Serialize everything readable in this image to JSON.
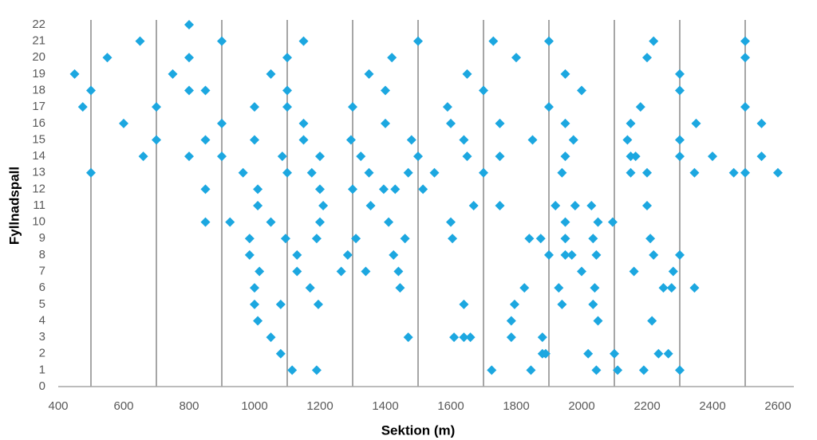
{
  "chart_data": {
    "type": "scatter",
    "x_label": "Sektion (m)",
    "y_label": "Fyllnadspall",
    "color": "#1ca7e0",
    "xlim": [
      400,
      2600
    ],
    "ylim": [
      0,
      22
    ],
    "xticks": [
      400,
      600,
      800,
      1000,
      1200,
      1400,
      1600,
      1800,
      2000,
      2200,
      2400,
      2600
    ],
    "yticks": [
      0,
      1,
      2,
      3,
      4,
      5,
      6,
      7,
      8,
      9,
      10,
      11,
      12,
      13,
      14,
      15,
      16,
      17,
      18,
      19,
      20,
      21,
      22
    ],
    "xgrid": [
      500,
      700,
      900,
      1100,
      1300,
      1500,
      1700,
      1900,
      2100,
      2300,
      2500
    ],
    "x": [
      800,
      650,
      900,
      1150,
      1500,
      1730,
      1900,
      2220,
      2500,
      550,
      800,
      1100,
      1420,
      1800,
      2200,
      2500,
      450,
      750,
      1050,
      1350,
      1650,
      1950,
      2300,
      500,
      800,
      850,
      1100,
      1400,
      1700,
      2000,
      2300,
      475,
      700,
      1000,
      1100,
      1300,
      1590,
      1900,
      2180,
      2500,
      600,
      900,
      1150,
      1400,
      1600,
      1750,
      1950,
      2150,
      2350,
      2550,
      700,
      850,
      1000,
      1150,
      1295,
      1480,
      1640,
      1850,
      1975,
      2140,
      2300,
      660,
      800,
      900,
      1085,
      1200,
      1325,
      1500,
      1650,
      1750,
      1950,
      2150,
      2165,
      2300,
      2400,
      2550,
      500,
      965,
      1100,
      1175,
      1350,
      1470,
      1550,
      1700,
      1940,
      2150,
      2200,
      2345,
      2465,
      2500,
      2600,
      850,
      1010,
      1200,
      1300,
      1395,
      1430,
      1515,
      1010,
      1210,
      1355,
      1670,
      1750,
      1920,
      1980,
      2030,
      2200,
      850,
      925,
      1050,
      1200,
      1410,
      1600,
      1950,
      2050,
      2095,
      985,
      1095,
      1190,
      1310,
      1460,
      1605,
      1840,
      1875,
      1950,
      2035,
      2210,
      985,
      1130,
      1285,
      1425,
      1900,
      1950,
      1970,
      2045,
      2220,
      2300,
      1015,
      1130,
      1265,
      1340,
      1440,
      2000,
      2160,
      2280,
      1000,
      1170,
      1445,
      1825,
      1930,
      2040,
      2250,
      2275,
      2345,
      1000,
      1080,
      1195,
      1640,
      1795,
      1940,
      2035,
      1010,
      1785,
      2050,
      2215,
      1050,
      1470,
      1610,
      1640,
      1660,
      1785,
      1880,
      1080,
      1880,
      1890,
      2020,
      2100,
      2235,
      2265,
      1115,
      1190,
      1725,
      1845,
      2045,
      2110,
      2190,
      2300
    ],
    "values": [
      22,
      21,
      21,
      21,
      21,
      21,
      21,
      21,
      21,
      20,
      20,
      20,
      20,
      20,
      20,
      20,
      19,
      19,
      19,
      19,
      19,
      19,
      19,
      18,
      18,
      18,
      18,
      18,
      18,
      18,
      18,
      17,
      17,
      17,
      17,
      17,
      17,
      17,
      17,
      17,
      16,
      16,
      16,
      16,
      16,
      16,
      16,
      16,
      16,
      16,
      15,
      15,
      15,
      15,
      15,
      15,
      15,
      15,
      15,
      15,
      15,
      14,
      14,
      14,
      14,
      14,
      14,
      14,
      14,
      14,
      14,
      14,
      14,
      14,
      14,
      14,
      13,
      13,
      13,
      13,
      13,
      13,
      13,
      13,
      13,
      13,
      13,
      13,
      13,
      13,
      13,
      12,
      12,
      12,
      12,
      12,
      12,
      12,
      11,
      11,
      11,
      11,
      11,
      11,
      11,
      11,
      11,
      10,
      10,
      10,
      10,
      10,
      10,
      10,
      10,
      10,
      9,
      9,
      9,
      9,
      9,
      9,
      9,
      9,
      9,
      9,
      9,
      8,
      8,
      8,
      8,
      8,
      8,
      8,
      8,
      8,
      8,
      7,
      7,
      7,
      7,
      7,
      7,
      7,
      7,
      6,
      6,
      6,
      6,
      6,
      6,
      6,
      6,
      6,
      5,
      5,
      5,
      5,
      5,
      5,
      5,
      4,
      4,
      4,
      4,
      3,
      3,
      3,
      3,
      3,
      3,
      3,
      2,
      2,
      2,
      2,
      2,
      2,
      2,
      1,
      1,
      1,
      1,
      1,
      1,
      1,
      1
    ]
  }
}
